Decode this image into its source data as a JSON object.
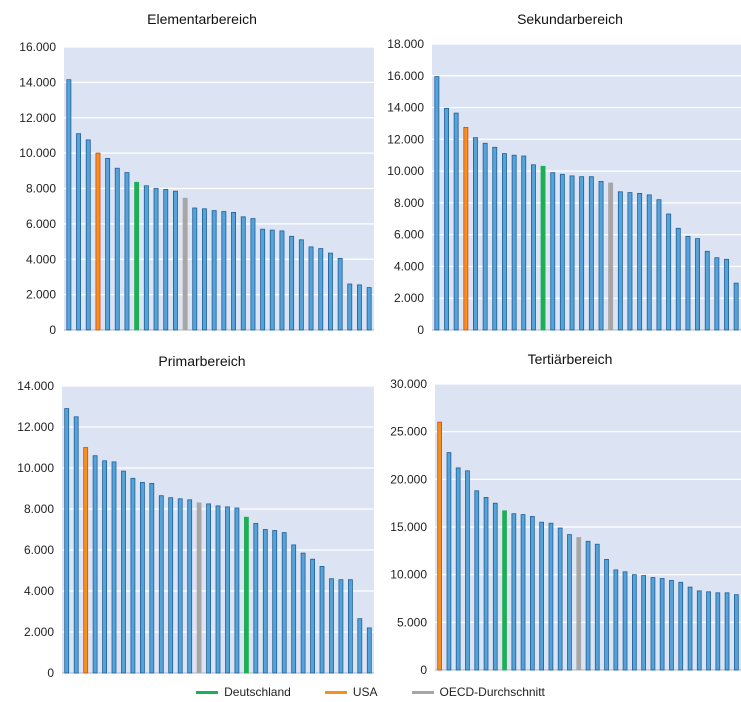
{
  "colors": {
    "plot_bg": "#dce4f4",
    "bar_default": "#56a3d9",
    "bar_edge": "#1e5f9a",
    "deutschland": "#1eae55",
    "usa": "#f5901e",
    "usa_edge": "#d4481c",
    "oecd": "#a6a6a6",
    "gridline": "#ffffff",
    "axis_line": "#aab4c8"
  },
  "legend": {
    "items": [
      {
        "label": "Deutschland",
        "color": "#1eae55"
      },
      {
        "label": "USA",
        "color": "#f5901e"
      },
      {
        "label": "OECD-Durchschnitt",
        "color": "#a6a6a6"
      }
    ]
  },
  "chart_data": [
    {
      "type": "bar",
      "title": "Elementarbereich",
      "ylim": [
        0,
        16000
      ],
      "yticks": [
        "0",
        "2.000",
        "4.000",
        "6.000",
        "8.000",
        "10.000",
        "12.000",
        "14.000",
        "16.000"
      ],
      "grid": true,
      "values": [
        14150,
        11100,
        10750,
        10000,
        9700,
        9150,
        8900,
        8350,
        8150,
        8000,
        7950,
        7850,
        7450,
        6900,
        6850,
        6750,
        6700,
        6650,
        6400,
        6300,
        5700,
        5650,
        5600,
        5300,
        5100,
        4700,
        4600,
        4350,
        4050,
        2600,
        2550,
        2400
      ],
      "highlights": {
        "usa": 3,
        "deutschland": 7,
        "oecd": 12
      }
    },
    {
      "type": "bar",
      "title": "Sekundarbereich",
      "ylim": [
        0,
        18000
      ],
      "yticks": [
        "0",
        "2.000",
        "4.000",
        "6.000",
        "8.000",
        "10.000",
        "12.000",
        "14.000",
        "16.000",
        "18.000"
      ],
      "grid": true,
      "values": [
        15950,
        13950,
        13650,
        12750,
        12100,
        11750,
        11500,
        11100,
        11000,
        10950,
        10400,
        10300,
        9900,
        9800,
        9700,
        9650,
        9650,
        9350,
        9250,
        8700,
        8650,
        8600,
        8500,
        8200,
        7300,
        6400,
        5900,
        5750,
        4950,
        4550,
        4450,
        2950
      ],
      "highlights": {
        "usa": 3,
        "deutschland": 11,
        "oecd": 18
      }
    },
    {
      "type": "bar",
      "title": "Primarbereich",
      "ylim": [
        0,
        14000
      ],
      "yticks": [
        "0",
        "2.000",
        "4.000",
        "6.000",
        "8.000",
        "10.000",
        "12.000",
        "14.000"
      ],
      "grid": true,
      "values": [
        12900,
        12500,
        11000,
        10600,
        10350,
        10300,
        9850,
        9500,
        9300,
        9250,
        8650,
        8550,
        8500,
        8450,
        8300,
        8250,
        8150,
        8100,
        8050,
        7600,
        7300,
        7000,
        6950,
        6850,
        6250,
        5850,
        5550,
        5200,
        4600,
        4550,
        4550,
        2650,
        2200
      ],
      "highlights": {
        "usa": 2,
        "deutschland": 19,
        "oecd": 14
      }
    },
    {
      "type": "bar",
      "title": "Tertiärbereich",
      "ylim": [
        0,
        30000
      ],
      "yticks": [
        "0",
        "5.000",
        "10.000",
        "15.000",
        "20.000",
        "25.000",
        "30.000"
      ],
      "grid": true,
      "values": [
        26000,
        22800,
        21200,
        20900,
        18800,
        18100,
        17500,
        16700,
        16400,
        16300,
        16100,
        15500,
        15400,
        14900,
        14200,
        13900,
        13500,
        13200,
        11600,
        10500,
        10300,
        10000,
        9900,
        9700,
        9600,
        9400,
        9200,
        8700,
        8300,
        8200,
        8100,
        8100,
        7900
      ],
      "highlights": {
        "usa": 0,
        "deutschland": 7,
        "oecd": 15
      }
    }
  ]
}
